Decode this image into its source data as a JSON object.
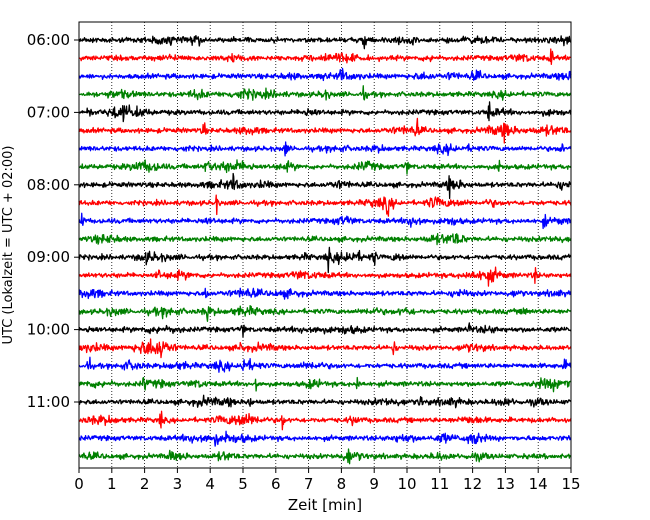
{
  "chart_data": {
    "type": "line",
    "title": "",
    "xlabel": "Zeit  [min]",
    "ylabel": "UTC (Lokalzeit = UTC + 02:00)",
    "xlim": [
      0,
      15
    ],
    "x_ticks": [
      "0",
      "1",
      "2",
      "3",
      "4",
      "5",
      "6",
      "7",
      "8",
      "9",
      "10",
      "11",
      "12",
      "13",
      "14",
      "15"
    ],
    "y_tick_labels": [
      "06:00",
      "07:00",
      "08:00",
      "09:00",
      "10:00",
      "11:00"
    ],
    "grid": "vertical dotted",
    "trace_interval_minutes": 15,
    "trace_colors": [
      "#000000",
      "#ff0000",
      "#0000ff",
      "#008000"
    ],
    "series": [
      {
        "start": "06:00",
        "color": "#000000",
        "events": [
          8.7,
          10.2
        ]
      },
      {
        "start": "06:15",
        "color": "#ff0000",
        "events": [
          14.4
        ]
      },
      {
        "start": "06:30",
        "color": "#0000ff",
        "events": [
          7.5,
          8.0
        ]
      },
      {
        "start": "06:45",
        "color": "#008000",
        "events": [
          8.7
        ]
      },
      {
        "start": "07:00",
        "color": "#000000",
        "events": [
          0.3,
          12.5
        ]
      },
      {
        "start": "07:15",
        "color": "#ff0000",
        "events": [
          3.8,
          10.3,
          13.0
        ]
      },
      {
        "start": "07:30",
        "color": "#0000ff",
        "events": [
          6.3,
          14.7
        ]
      },
      {
        "start": "07:45",
        "color": "#008000",
        "events": [
          3.9,
          10.0,
          12.8
        ]
      },
      {
        "start": "08:00",
        "color": "#000000",
        "events": [
          4.7,
          11.3
        ]
      },
      {
        "start": "08:15",
        "color": "#ff0000",
        "events": [
          4.2,
          9.4
        ]
      },
      {
        "start": "08:30",
        "color": "#0000ff",
        "events": [
          0.1,
          14.2
        ]
      },
      {
        "start": "08:45",
        "color": "#008000",
        "events": []
      },
      {
        "start": "09:00",
        "color": "#000000",
        "events": [
          7.6,
          9.0
        ]
      },
      {
        "start": "09:15",
        "color": "#ff0000",
        "events": [
          2.4,
          13.9
        ]
      },
      {
        "start": "09:30",
        "color": "#0000ff",
        "events": [
          3.9
        ]
      },
      {
        "start": "09:45",
        "color": "#008000",
        "events": [
          3.9,
          13.6
        ]
      },
      {
        "start": "10:00",
        "color": "#000000",
        "events": [
          5.0,
          11.9
        ]
      },
      {
        "start": "10:15",
        "color": "#ff0000",
        "events": [
          2.5,
          4.9,
          9.6
        ]
      },
      {
        "start": "10:30",
        "color": "#0000ff",
        "events": [
          0.3,
          5.0
        ]
      },
      {
        "start": "10:45",
        "color": "#008000",
        "events": [
          2.0,
          5.4,
          8.5
        ]
      },
      {
        "start": "11:00",
        "color": "#000000",
        "events": [
          5.2,
          10.4
        ]
      },
      {
        "start": "11:15",
        "color": "#ff0000",
        "events": [
          2.5,
          6.2
        ]
      },
      {
        "start": "11:30",
        "color": "#0000ff",
        "events": [
          4.2,
          4.5
        ]
      },
      {
        "start": "11:45",
        "color": "#008000",
        "events": [
          2.8,
          8.2
        ]
      }
    ]
  }
}
